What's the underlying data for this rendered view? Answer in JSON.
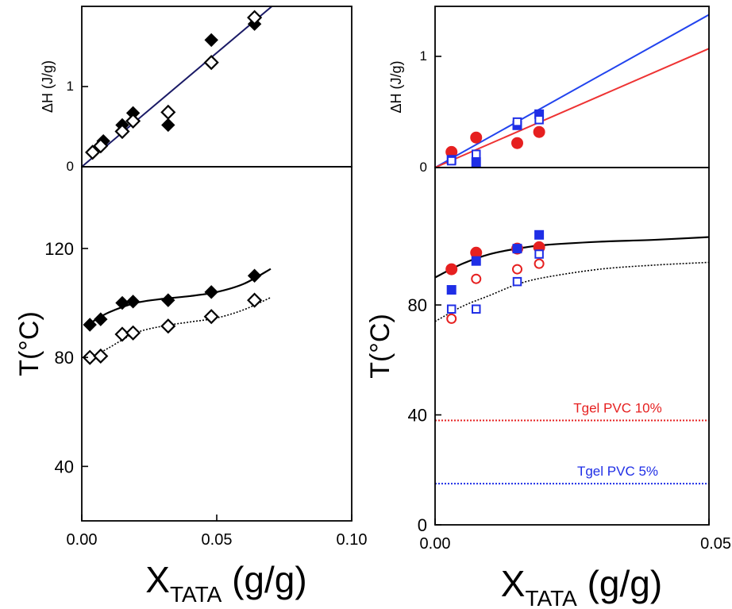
{
  "chart_data": [
    {
      "id": "left_top",
      "type": "scatter",
      "ylabel": "ΔH (J/g)",
      "xlim": [
        0,
        0.1
      ],
      "ylim": [
        0,
        2
      ],
      "yticks": [
        0,
        1
      ],
      "series": [
        {
          "marker": "diamond-filled",
          "color": "#000000",
          "x": [
            0.004,
            0.008,
            0.015,
            0.019,
            0.032,
            0.048,
            0.064
          ],
          "y": [
            0.18,
            0.32,
            0.52,
            0.67,
            0.52,
            1.58,
            1.78
          ]
        },
        {
          "marker": "diamond-open",
          "color": "#000000",
          "x": [
            0.004,
            0.007,
            0.015,
            0.019,
            0.032,
            0.048,
            0.064
          ],
          "y": [
            0.18,
            0.26,
            0.44,
            0.57,
            0.68,
            1.3,
            1.86
          ]
        }
      ],
      "fits": [
        {
          "kind": "linear",
          "slope": 28.4,
          "x": [
            0,
            0.075
          ],
          "color": "#1a1a66",
          "dash": "solid"
        }
      ]
    },
    {
      "id": "left_bottom",
      "type": "scatter",
      "xlabel_main": "X",
      "xlabel_sub": "TATA",
      "xlabel_unit": " (g/g)",
      "ylabel": "T(°C)",
      "xlim": [
        0,
        0.1
      ],
      "ylim": [
        20,
        150
      ],
      "xticks": [
        "0.00",
        "0.05",
        "0.10"
      ],
      "yticks": [
        40,
        80,
        120
      ],
      "series": [
        {
          "marker": "diamond-filled",
          "color": "#000000",
          "x": [
            0.003,
            0.007,
            0.015,
            0.019,
            0.032,
            0.048,
            0.064
          ],
          "y": [
            92,
            94,
            100,
            100.5,
            101,
            104,
            110
          ]
        },
        {
          "marker": "diamond-open",
          "color": "#000000",
          "x": [
            0.003,
            0.007,
            0.015,
            0.019,
            0.032,
            0.048,
            0.064
          ],
          "y": [
            80,
            80.5,
            88.5,
            89,
            91.5,
            95,
            101
          ]
        }
      ],
      "fits": [
        {
          "kind": "curve",
          "color": "#000000",
          "dash": "solid",
          "points": [
            [
              0.003,
              92.5
            ],
            [
              0.01,
              96.5
            ],
            [
              0.02,
              100
            ],
            [
              0.03,
              101.5
            ],
            [
              0.04,
              102.5
            ],
            [
              0.05,
              104
            ],
            [
              0.06,
              107
            ],
            [
              0.07,
              112.5
            ]
          ]
        },
        {
          "kind": "curve",
          "color": "#000000",
          "dash": "dotted",
          "points": [
            [
              0.003,
              79.5
            ],
            [
              0.01,
              83.5
            ],
            [
              0.02,
              89
            ],
            [
              0.03,
              91.5
            ],
            [
              0.04,
              93
            ],
            [
              0.05,
              94.5
            ],
            [
              0.06,
              97.5
            ],
            [
              0.07,
              102
            ]
          ]
        }
      ]
    },
    {
      "id": "right_top",
      "type": "scatter",
      "ylabel": "ΔH (J/g)",
      "xlim": [
        0,
        0.05
      ],
      "ylim": [
        0,
        1.45
      ],
      "yticks": [
        0,
        1
      ],
      "series": [
        {
          "marker": "circle-filled",
          "color": "#e62020",
          "x": [
            0.003,
            0.0075,
            0.015,
            0.019
          ],
          "y": [
            0.14,
            0.27,
            0.22,
            0.32
          ]
        },
        {
          "marker": "square-filled",
          "color": "#1f2ee6",
          "x": [
            0.003,
            0.0075,
            0.015,
            0.019
          ],
          "y": [
            0.07,
            0.05,
            0.38,
            0.48
          ]
        },
        {
          "marker": "square-open",
          "color": "#1f2ee6",
          "x": [
            0.003,
            0.0075,
            0.015,
            0.019
          ],
          "y": [
            0.06,
            0.12,
            0.41,
            0.43
          ]
        }
      ],
      "fits": [
        {
          "kind": "linear",
          "slope": 27.5,
          "x": [
            0,
            0.05
          ],
          "color": "#2244ee",
          "dash": "solid"
        },
        {
          "kind": "linear",
          "slope": 21.4,
          "x": [
            0,
            0.05
          ],
          "color": "#ee3333",
          "dash": "solid"
        }
      ]
    },
    {
      "id": "right_bottom",
      "type": "scatter",
      "xlabel_main": "X",
      "xlabel_sub": "TATA",
      "xlabel_unit": " (g/g)",
      "ylabel": "T(°C)",
      "xlim": [
        0,
        0.05
      ],
      "ylim": [
        0,
        130
      ],
      "xticks": [
        "0.00",
        "0.05"
      ],
      "yticks": [
        0,
        40,
        80
      ],
      "series": [
        {
          "marker": "circle-filled",
          "color": "#e62020",
          "x": [
            0.003,
            0.0075,
            0.015,
            0.019
          ],
          "y": [
            93,
            99,
            100.5,
            101
          ]
        },
        {
          "marker": "square-filled",
          "color": "#1f2ee6",
          "x": [
            0.003,
            0.0075,
            0.015,
            0.019
          ],
          "y": [
            85.5,
            96,
            100.5,
            105.5
          ]
        },
        {
          "marker": "circle-open",
          "color": "#e62020",
          "x": [
            0.003,
            0.0075,
            0.015,
            0.019
          ],
          "y": [
            75,
            89.5,
            93,
            95
          ]
        },
        {
          "marker": "square-open",
          "color": "#1f2ee6",
          "x": [
            0.003,
            0.0075,
            0.015,
            0.019
          ],
          "y": [
            78.5,
            78.5,
            88.5,
            98.5
          ]
        }
      ],
      "fits": [
        {
          "kind": "curve",
          "color": "#000000",
          "dash": "solid",
          "points": [
            [
              0,
              90
            ],
            [
              0.005,
              95
            ],
            [
              0.01,
              98.5
            ],
            [
              0.015,
              100.5
            ],
            [
              0.02,
              101.8
            ],
            [
              0.03,
              103
            ],
            [
              0.04,
              103.7
            ],
            [
              0.05,
              104.7
            ]
          ]
        },
        {
          "kind": "curve",
          "color": "#000000",
          "dash": "dotted",
          "points": [
            [
              0,
              74
            ],
            [
              0.005,
              79.5
            ],
            [
              0.01,
              83.5
            ],
            [
              0.015,
              87.5
            ],
            [
              0.02,
              90
            ],
            [
              0.03,
              93
            ],
            [
              0.04,
              94.5
            ],
            [
              0.05,
              95.5
            ]
          ]
        },
        {
          "kind": "hline",
          "y": 38,
          "color": "#e62020",
          "dash": "dotted",
          "label": "Tgel PVC 10%"
        },
        {
          "kind": "hline",
          "y": 15,
          "color": "#1f2ee6",
          "dash": "dotted",
          "label": "Tgel PVC 5%"
        }
      ]
    }
  ]
}
